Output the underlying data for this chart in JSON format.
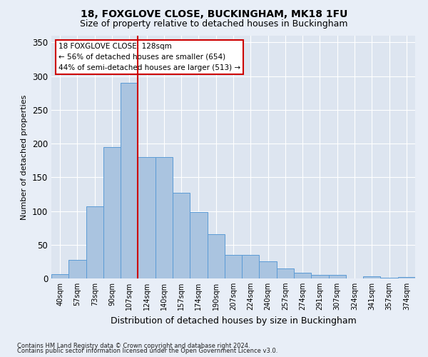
{
  "title": "18, FOXGLOVE CLOSE, BUCKINGHAM, MK18 1FU",
  "subtitle": "Size of property relative to detached houses in Buckingham",
  "xlabel": "Distribution of detached houses by size in Buckingham",
  "ylabel": "Number of detached properties",
  "footnote1": "Contains HM Land Registry data © Crown copyright and database right 2024.",
  "footnote2": "Contains public sector information licensed under the Open Government Licence v3.0.",
  "categories": [
    "40sqm",
    "57sqm",
    "73sqm",
    "90sqm",
    "107sqm",
    "124sqm",
    "140sqm",
    "157sqm",
    "174sqm",
    "190sqm",
    "207sqm",
    "224sqm",
    "240sqm",
    "257sqm",
    "274sqm",
    "291sqm",
    "307sqm",
    "324sqm",
    "341sqm",
    "357sqm",
    "374sqm"
  ],
  "values": [
    6,
    28,
    107,
    195,
    290,
    180,
    180,
    127,
    99,
    66,
    35,
    35,
    25,
    15,
    8,
    5,
    5,
    0,
    3,
    1,
    2
  ],
  "bar_color": "#aac4e0",
  "bar_edge_color": "#5b9bd5",
  "vline_x_index": 5,
  "vline_color": "#cc0000",
  "annotation_text": "18 FOXGLOVE CLOSE: 128sqm\n← 56% of detached houses are smaller (654)\n44% of semi-detached houses are larger (513) →",
  "annotation_box_color": "#ffffff",
  "annotation_box_edge": "#cc0000",
  "ylim": [
    0,
    360
  ],
  "yticks": [
    0,
    50,
    100,
    150,
    200,
    250,
    300,
    350
  ],
  "background_color": "#e8eef7",
  "plot_bg_color": "#dde5f0",
  "grid_color": "#ffffff",
  "title_fontsize": 10,
  "subtitle_fontsize": 9,
  "ylabel_fontsize": 8,
  "xlabel_fontsize": 9
}
